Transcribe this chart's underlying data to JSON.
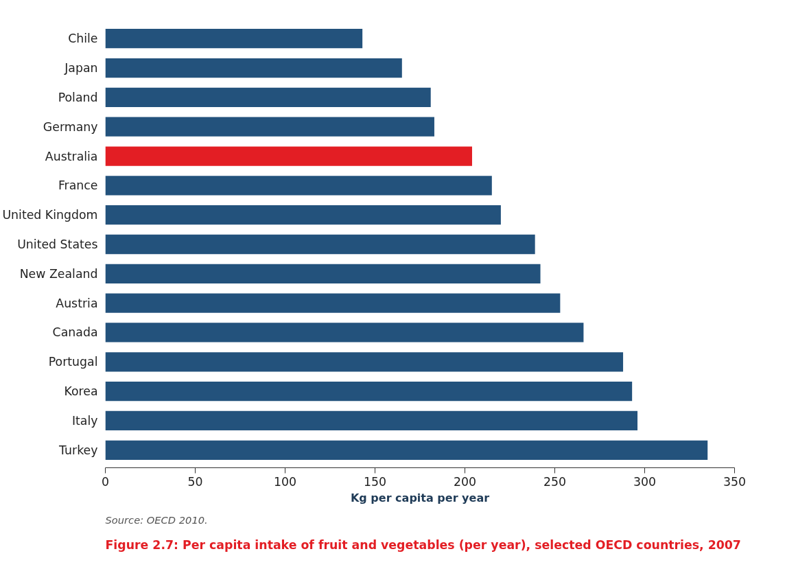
{
  "chart_data": {
    "type": "bar",
    "orientation": "horizontal",
    "title": "Figure 2.7: Per capita intake of fruit and vegetables (per year), selected OECD countries, 2007",
    "xlabel": "Kg per capita per year",
    "annotations": [
      "Source: OECD 2010."
    ],
    "categories": [
      "Chile",
      "Japan",
      "Poland",
      "Germany",
      "Australia",
      "France",
      "United Kingdom",
      "United States",
      "New Zealand",
      "Austria",
      "Canada",
      "Portugal",
      "Korea",
      "Italy",
      "Turkey"
    ],
    "values": [
      143,
      165,
      181,
      183,
      204,
      215,
      220,
      239,
      242,
      253,
      266,
      288,
      293,
      296,
      335
    ],
    "colors": [
      "#23527c",
      "#23527c",
      "#23527c",
      "#23527c",
      "#e31e24",
      "#23527c",
      "#23527c",
      "#23527c",
      "#23527c",
      "#23527c",
      "#23527c",
      "#23527c",
      "#23527c",
      "#23527c",
      "#23527c"
    ],
    "xlim": [
      0,
      350
    ],
    "xticks": [
      0,
      50,
      100,
      150,
      200,
      250,
      300,
      350
    ],
    "grid": false
  }
}
